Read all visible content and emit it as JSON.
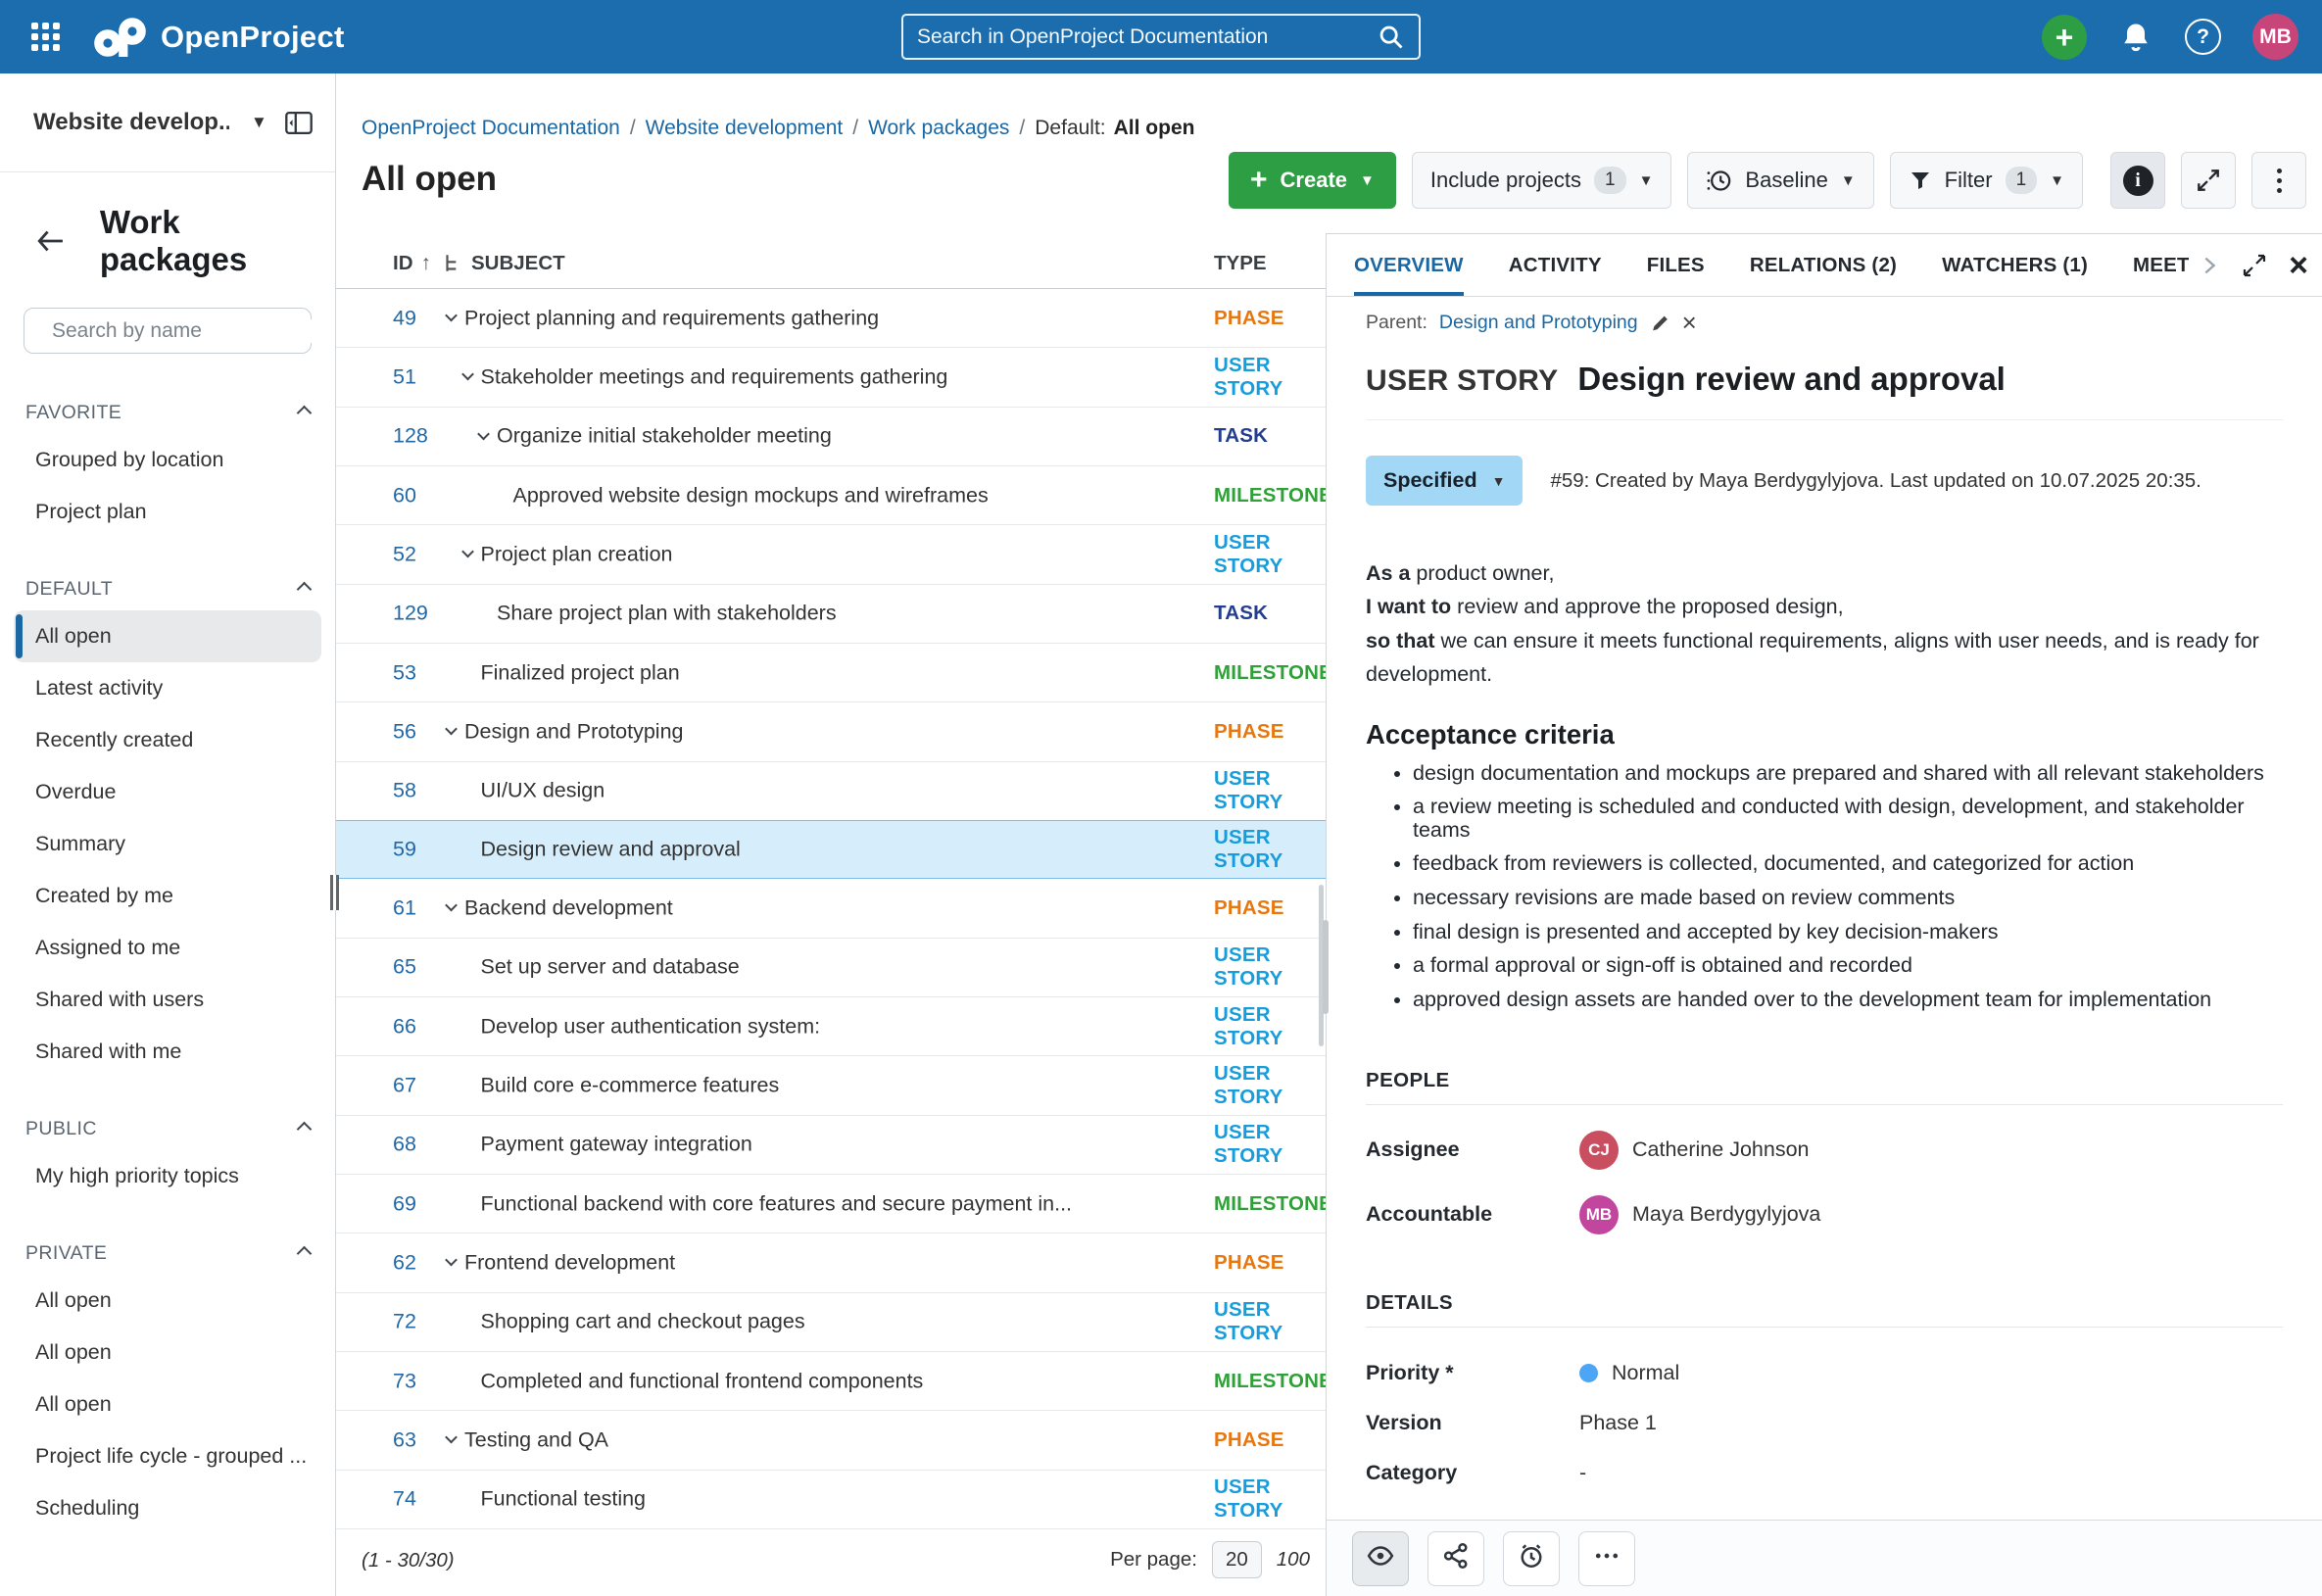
{
  "topbar": {
    "logo": "OpenProject",
    "search_placeholder": "Search in OpenProject Documentation",
    "avatar": "MB",
    "icons": [
      "grid-menu",
      "plus",
      "bell",
      "help"
    ]
  },
  "colors": {
    "topbar_bg": "#1C6DAE",
    "primary": "#1A67A3",
    "create_green": "#2E9E44",
    "status_pill_bg": "#A3D7F6",
    "selected_row_bg": "#D6EEFB",
    "avatar_topbar": "#C74578"
  },
  "sidebar": {
    "project": "Website develop...",
    "nav_title": "Work packages",
    "search_placeholder": "Search by name",
    "sections": [
      {
        "title": "FAVORITE",
        "items": [
          {
            "label": "Grouped by location"
          },
          {
            "label": "Project plan"
          }
        ]
      },
      {
        "title": "DEFAULT",
        "items": [
          {
            "label": "All open",
            "selected": true
          },
          {
            "label": "Latest activity"
          },
          {
            "label": "Recently created"
          },
          {
            "label": "Overdue"
          },
          {
            "label": "Summary"
          },
          {
            "label": "Created by me"
          },
          {
            "label": "Assigned to me"
          },
          {
            "label": "Shared with users"
          },
          {
            "label": "Shared with me"
          }
        ]
      },
      {
        "title": "PUBLIC",
        "items": [
          {
            "label": "My high priority topics"
          }
        ]
      },
      {
        "title": "PRIVATE",
        "items": [
          {
            "label": "All open"
          },
          {
            "label": "All open"
          },
          {
            "label": "All open"
          },
          {
            "label": "Project life cycle - grouped ..."
          },
          {
            "label": "Scheduling"
          }
        ]
      }
    ]
  },
  "breadcrumb": {
    "links": [
      "OpenProject Documentation",
      "Website development",
      "Work packages"
    ],
    "prefix": "Default:",
    "current": "All open"
  },
  "page_title": "All open",
  "toolbar": {
    "create_label": "Create",
    "include_projects_label": "Include projects",
    "include_projects_count": "1",
    "baseline_label": "Baseline",
    "filter_label": "Filter",
    "filter_count": "1",
    "icon_buttons": [
      "info",
      "fullscreen",
      "more"
    ]
  },
  "table": {
    "columns": {
      "id": "ID",
      "subject": "SUBJECT",
      "type": "TYPE"
    },
    "type_colors": {
      "PHASE": "#E8770E",
      "USER STORY": "#189DDC",
      "TASK": "#243E8F",
      "MILESTONE": "#30A138"
    },
    "rows": [
      {
        "id": "49",
        "level": 0,
        "caret": true,
        "subject": "Project planning and requirements gathering",
        "type": "PHASE"
      },
      {
        "id": "51",
        "level": 1,
        "caret": true,
        "subject": "Stakeholder meetings and requirements gathering",
        "type": "USER STORY"
      },
      {
        "id": "128",
        "level": 2,
        "caret": true,
        "subject": "Organize initial stakeholder meeting",
        "type": "TASK"
      },
      {
        "id": "60",
        "level": 3,
        "caret": false,
        "subject": "Approved website design mockups and wireframes",
        "type": "MILESTONE"
      },
      {
        "id": "52",
        "level": 1,
        "caret": true,
        "subject": "Project plan creation",
        "type": "USER STORY"
      },
      {
        "id": "129",
        "level": 2,
        "caret": false,
        "subject": "Share project plan with stakeholders",
        "type": "TASK"
      },
      {
        "id": "53",
        "level": 1,
        "caret": false,
        "subject": "Finalized project plan",
        "type": "MILESTONE"
      },
      {
        "id": "56",
        "level": 0,
        "caret": true,
        "subject": "Design and Prototyping",
        "type": "PHASE"
      },
      {
        "id": "58",
        "level": 1,
        "caret": false,
        "subject": "UI/UX design",
        "type": "USER STORY"
      },
      {
        "id": "59",
        "level": 1,
        "caret": false,
        "subject": "Design review and approval",
        "type": "USER STORY",
        "selected": true
      },
      {
        "id": "61",
        "level": 0,
        "caret": true,
        "subject": "Backend development",
        "type": "PHASE"
      },
      {
        "id": "65",
        "level": 1,
        "caret": false,
        "subject": "Set up server and database",
        "type": "USER STORY"
      },
      {
        "id": "66",
        "level": 1,
        "caret": false,
        "subject": "Develop user authentication system:",
        "type": "USER STORY"
      },
      {
        "id": "67",
        "level": 1,
        "caret": false,
        "subject": "Build core e-commerce features",
        "type": "USER STORY"
      },
      {
        "id": "68",
        "level": 1,
        "caret": false,
        "subject": "Payment gateway integration",
        "type": "USER STORY"
      },
      {
        "id": "69",
        "level": 1,
        "caret": false,
        "subject": "Functional backend with core features and secure payment in...",
        "type": "MILESTONE"
      },
      {
        "id": "62",
        "level": 0,
        "caret": true,
        "subject": "Frontend development",
        "type": "PHASE"
      },
      {
        "id": "72",
        "level": 1,
        "caret": false,
        "subject": "Shopping cart and checkout pages",
        "type": "USER STORY"
      },
      {
        "id": "73",
        "level": 1,
        "caret": false,
        "subject": "Completed and functional frontend components",
        "type": "MILESTONE"
      },
      {
        "id": "63",
        "level": 0,
        "caret": true,
        "subject": "Testing and QA",
        "type": "PHASE"
      },
      {
        "id": "74",
        "level": 1,
        "caret": false,
        "subject": "Functional testing",
        "type": "USER STORY"
      }
    ],
    "pagination": {
      "range": "(1 - 30/30)",
      "per_page_label": "Per page:",
      "selected": "20",
      "other": "100"
    }
  },
  "panel": {
    "tabs": [
      {
        "label": "OVERVIEW",
        "active": true
      },
      {
        "label": "ACTIVITY"
      },
      {
        "label": "FILES"
      },
      {
        "label": "RELATIONS (2)"
      },
      {
        "label": "WATCHERS (1)"
      },
      {
        "label": "MEETINGS"
      }
    ],
    "parent_label": "Parent:",
    "parent_name": "Design and Prototyping",
    "type_label": "USER STORY",
    "type_color": "#189DDC",
    "title": "Design review and approval",
    "status": "Specified",
    "meta": "#59: Created by Maya Berdygylyjova. Last updated on 10.07.2025 20:35.",
    "description": [
      {
        "lead": "As a",
        "rest": " product owner,"
      },
      {
        "lead": "I want to",
        "rest": " review and approve the proposed design,"
      },
      {
        "lead": "so that",
        "rest": " we can ensure it meets functional requirements, aligns with user needs, and is ready for development."
      }
    ],
    "acceptance_title": "Acceptance criteria",
    "acceptance": [
      "design documentation and mockups are prepared and shared with all relevant stakeholders",
      "a review meeting is scheduled and conducted with design, development, and stakeholder teams",
      "feedback from reviewers is collected, documented, and categorized for action",
      "necessary revisions are made based on review comments",
      "final design is presented and accepted by key decision-makers",
      "a formal approval or sign-off is obtained and recorded",
      "approved design assets are handed over to the development team for implementation"
    ],
    "people": {
      "section": "PEOPLE",
      "rows": [
        {
          "label": "Assignee",
          "initials": "CJ",
          "name": "Catherine Johnson",
          "color": "#C94F60"
        },
        {
          "label": "Accountable",
          "initials": "MB",
          "name": "Maya Berdygylyjova",
          "color": "#C2459E"
        }
      ]
    },
    "details": {
      "section": "DETAILS",
      "rows": [
        {
          "label": "Priority *",
          "value": "Normal",
          "dot": "#4DA6F5"
        },
        {
          "label": "Version",
          "value": "Phase 1"
        },
        {
          "label": "Category",
          "value": "-"
        }
      ]
    },
    "footer_actions": [
      "watch",
      "share",
      "reminder",
      "more"
    ]
  }
}
